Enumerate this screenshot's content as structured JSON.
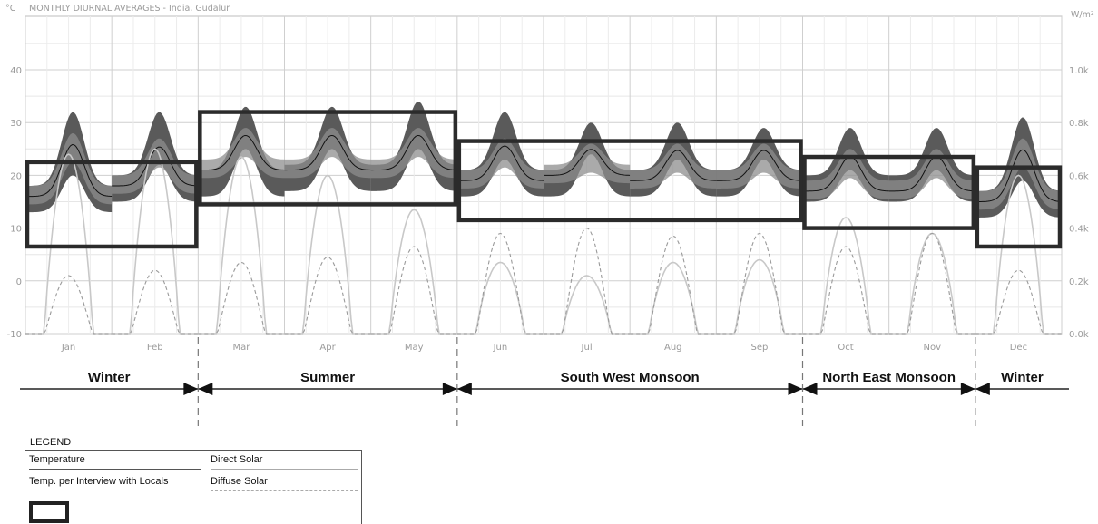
{
  "chart_data": {
    "type": "line",
    "title": "MONTHLY DIURNAL AVERAGES - India, Gudalur",
    "ylabel_left": "°C",
    "ylabel_right": "W/m²",
    "ylim_left": [
      -10,
      50
    ],
    "ylim_right": [
      0.0,
      1.0
    ],
    "left_ticks": [
      "-10",
      "0",
      "10",
      "20",
      "30",
      "40"
    ],
    "right_ticks": [
      "0.0k",
      "0.2k",
      "0.4k",
      "0.6k",
      "0.8k",
      "1.0k"
    ],
    "months": [
      "Jan",
      "Feb",
      "Mar",
      "Apr",
      "May",
      "Jun",
      "Jul",
      "Aug",
      "Sep",
      "Oct",
      "Nov",
      "Dec"
    ],
    "series": [
      {
        "name": "Temperature",
        "mean_min": [
          16,
          18,
          21,
          21,
          21,
          19,
          20,
          19,
          19,
          17,
          17,
          15
        ],
        "mean_max": [
          28,
          27,
          29,
          29,
          29,
          27,
          26,
          26,
          26,
          25,
          25,
          27
        ],
        "max_max": [
          32,
          32,
          33,
          33,
          34,
          32,
          30,
          30,
          29,
          29,
          29,
          31
        ],
        "min_min": [
          13,
          15,
          16,
          17,
          17,
          16,
          16,
          16,
          16,
          15,
          15,
          12
        ]
      },
      {
        "name": "Direct Solar",
        "peak": [
          0.68,
          0.7,
          0.67,
          0.6,
          0.47,
          0.27,
          0.22,
          0.27,
          0.28,
          0.44,
          0.38,
          0.6
        ]
      },
      {
        "name": "Diffuse Solar",
        "peak": [
          0.22,
          0.24,
          0.27,
          0.29,
          0.33,
          0.38,
          0.4,
          0.37,
          0.38,
          0.33,
          0.38,
          0.24
        ]
      }
    ],
    "interview_ranges": [
      {
        "from": "Jan",
        "to": "Feb",
        "low": 6.5,
        "high": 22.5
      },
      {
        "from": "Mar",
        "to": "May",
        "low": 14.5,
        "high": 32
      },
      {
        "from": "Jun",
        "to": "Sep",
        "low": 11.5,
        "high": 26.5
      },
      {
        "from": "Oct",
        "to": "Nov",
        "low": 10,
        "high": 23.5
      },
      {
        "from": "Dec",
        "to": "Dec",
        "low": 6.5,
        "high": 21.5
      }
    ],
    "seasons": [
      {
        "label": "Winter",
        "from": "Jan",
        "to": "Feb"
      },
      {
        "label": "Summer",
        "from": "Mar",
        "to": "May"
      },
      {
        "label": "South West Monsoon",
        "from": "Jun",
        "to": "Sep"
      },
      {
        "label": "North East Monsoon",
        "from": "Oct",
        "to": "Nov"
      },
      {
        "label": "Winter",
        "from": "Dec",
        "to": "Dec"
      }
    ],
    "grid": true
  },
  "legend": {
    "title": "LEGEND",
    "temperature": "Temperature",
    "direct_solar": "Direct  Solar",
    "interview": "Temp. per Interview with Locals",
    "diffuse_solar": "Diffuse Solar"
  }
}
